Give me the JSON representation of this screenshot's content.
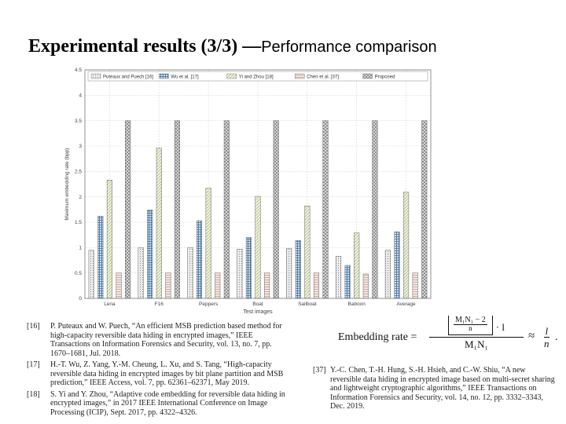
{
  "slide": {
    "title_main": "Experimental results (3/3) —",
    "title_sub": "Performance comparison"
  },
  "chart_data": {
    "type": "bar",
    "categories": [
      "Lena",
      "F16",
      "Peppers",
      "Boat",
      "Sailboat",
      "Baboon",
      "Average"
    ],
    "series": [
      {
        "name": "Puteaux and Puech [16]",
        "values": [
          0.95,
          1.0,
          1.0,
          0.97,
          0.98,
          0.83,
          0.95
        ],
        "color": "#e6e6e6",
        "pattern": "dots"
      },
      {
        "name": "Wu et al. [17]",
        "values": [
          1.62,
          1.74,
          1.53,
          1.2,
          1.14,
          0.65,
          1.31
        ],
        "color": "#a9c3dd",
        "pattern": "grid"
      },
      {
        "name": "Yi and Zhou [18]",
        "values": [
          2.33,
          2.96,
          2.17,
          2.01,
          1.82,
          1.29,
          2.09
        ],
        "color": "#e2ebcb",
        "pattern": "diag-right"
      },
      {
        "name": "Chen et al. [37]",
        "values": [
          0.5,
          0.5,
          0.5,
          0.5,
          0.5,
          0.48,
          0.5
        ],
        "color": "#f2dcd6",
        "pattern": "horizontal"
      },
      {
        "name": "Proposed",
        "values": [
          3.5,
          3.5,
          3.5,
          3.5,
          3.5,
          3.5,
          3.5
        ],
        "color": "#dadada",
        "pattern": "crosshatch"
      }
    ],
    "ylabel": "Maximum embedding rate (bpp)",
    "xlabel": "Test images",
    "ylim": [
      0,
      4.5
    ],
    "yticks": [
      "0",
      "0.5",
      "1",
      "1.5",
      "2",
      "2.5",
      "3",
      "3.5",
      "4",
      "4.5"
    ],
    "grid": true,
    "legend_position": "top"
  },
  "references_left": [
    {
      "num": "[16]",
      "text": "P. Puteaux and W. Puech, “An efficient MSB prediction based method for high-capacity reversible data hiding in encrypted images,” IEEE Transactions on Information Forensics and Security, vol. 13, no. 7, pp. 1670–1681, Jul. 2018."
    },
    {
      "num": "[17]",
      "text": "H.-T. Wu, Z. Yang, Y.-M. Cheung, L. Xu, and S. Tang, “High-capacity reversible data hiding in encrypted images by bit plane partition and MSB prediction,” IEEE Access, vol. 7, pp. 62361–62371, May 2019."
    },
    {
      "num": "[18]",
      "text": "S. Yi and Y. Zhou, “Adaptive code embedding for reversible data hiding in encrypted images,” in 2017 IEEE International Conference on Image Processing (ICIP), Sept. 2017, pp. 4322–4326."
    }
  ],
  "references_right": [
    {
      "num": "[37]",
      "text": "Y.-C. Chen, T.-H. Hung, S.-H. Hsieh, and C.-W. Shiu, “A new reversible data hiding in encrypted image based on multi-secret sharing and lightweight cryptographic algorithms,” IEEE Transactions on Information Forensics and Security, vol. 14, no. 12, pp. 3332–3343, Dec. 2019."
    }
  ],
  "formula": {
    "label": "Embedding rate =",
    "floor_num": "M₁N₁",
    "floor_minus": "− 2",
    "floor_den": "n",
    "times_l": "· l",
    "den": "M₁N₁",
    "approx": "≈",
    "frac_num": "l",
    "frac_den": "n",
    "period": "."
  }
}
